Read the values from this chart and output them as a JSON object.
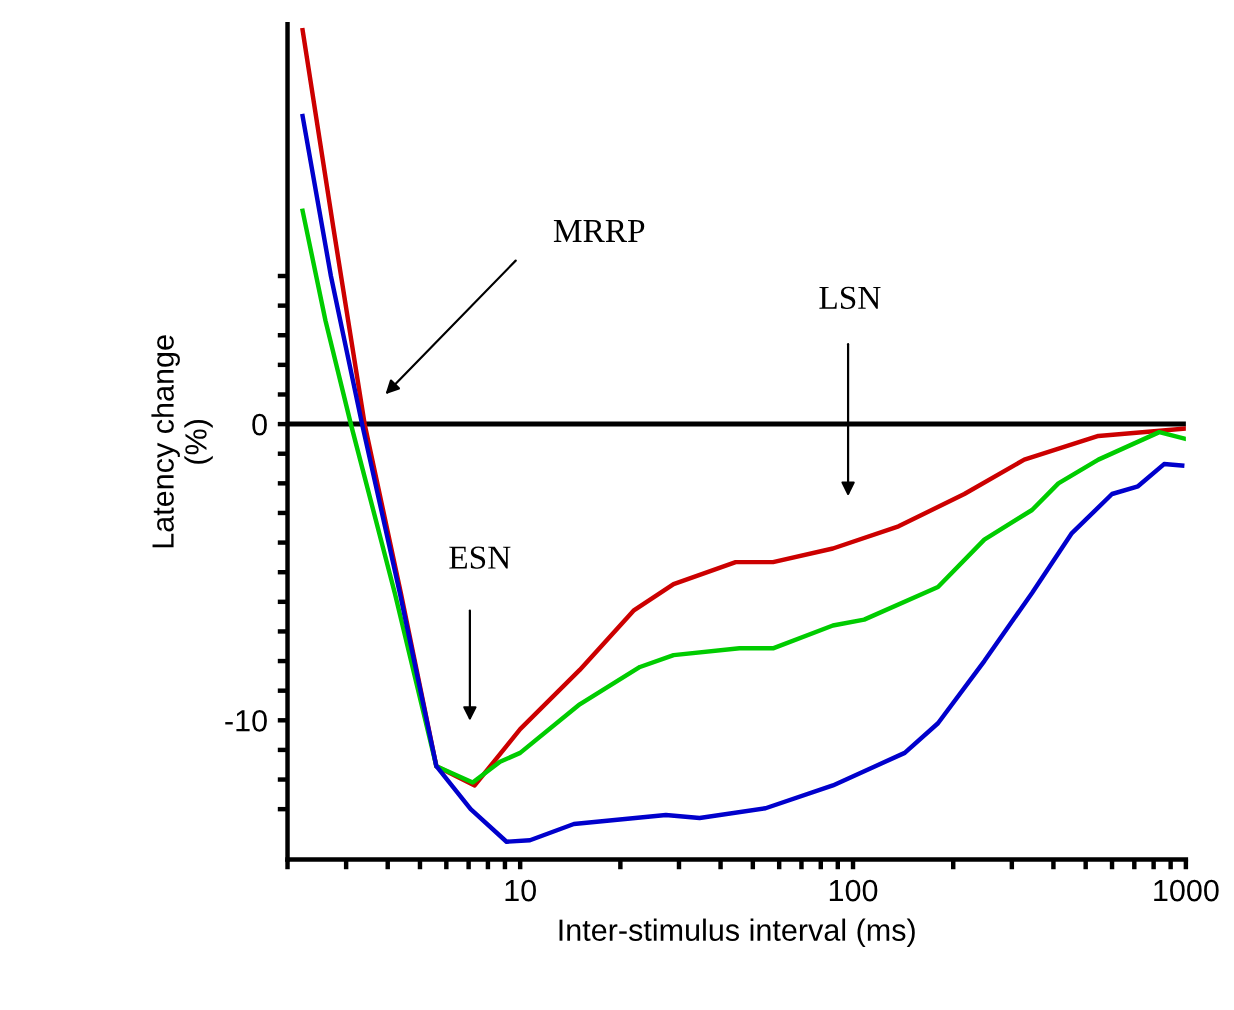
{
  "chart_data": {
    "type": "line",
    "xlabel": "Inter-stimulus interval (ms)",
    "ylabel": "Latency change\n(%)",
    "log": "x",
    "xlim": [
      2,
      1000
    ],
    "ylim": [
      -14.7,
      13.5
    ],
    "xticks": [
      {
        "value": 2,
        "label": null
      },
      {
        "value": 3,
        "label": null
      },
      {
        "value": 4,
        "label": null
      },
      {
        "value": 5,
        "label": null
      },
      {
        "value": 6,
        "label": null
      },
      {
        "value": 7,
        "label": null
      },
      {
        "value": 8,
        "label": null
      },
      {
        "value": 9,
        "label": null
      },
      10,
      {
        "value": 20,
        "label": null
      },
      {
        "value": 30,
        "label": null
      },
      {
        "value": 40,
        "label": null
      },
      {
        "value": 50,
        "label": null
      },
      {
        "value": 60,
        "label": null
      },
      {
        "value": 70,
        "label": null
      },
      {
        "value": 80,
        "label": null
      },
      {
        "value": 90,
        "label": null
      },
      100,
      {
        "value": 200,
        "label": null
      },
      {
        "value": 300,
        "label": null
      },
      {
        "value": 400,
        "label": null
      },
      {
        "value": 500,
        "label": null
      },
      {
        "value": 600,
        "label": null
      },
      {
        "value": 700,
        "label": null
      },
      {
        "value": 800,
        "label": null
      },
      {
        "value": 900,
        "label": null
      },
      1000
    ],
    "yticks": [
      {
        "value": -13,
        "label": null
      },
      {
        "value": -12,
        "label": null
      },
      {
        "value": -11,
        "label": null
      },
      -10,
      {
        "value": -9,
        "label": null
      },
      {
        "value": -8,
        "label": null
      },
      {
        "value": -7,
        "label": null
      },
      {
        "value": -6,
        "label": null
      },
      {
        "value": -5,
        "label": null
      },
      {
        "value": -4,
        "label": null
      },
      {
        "value": -3,
        "label": null
      },
      {
        "value": -2,
        "label": null
      },
      {
        "value": -1,
        "label": null
      },
      0,
      {
        "value": 1,
        "label": null
      },
      {
        "value": 2,
        "label": null
      },
      {
        "value": 3,
        "label": null
      },
      {
        "value": 4,
        "label": null
      },
      {
        "value": 5,
        "label": null
      }
    ],
    "grid": false,
    "legend": false,
    "marker": "none",
    "line_style": "solid",
    "ref_lines": [
      {
        "axis": "y",
        "value": 0,
        "color": "#000000"
      }
    ],
    "annotations": [
      "MRRP",
      "ESN",
      "LSN"
    ],
    "series": [
      {
        "color": "#cc0000",
        "x": [
          2.22,
          2.74,
          3.41,
          4.38,
          5.6,
          7.3,
          10,
          15.1,
          21.9,
          28.9,
          44.4,
          57.5,
          87,
          137,
          216,
          327,
          546,
          1000
        ],
        "values": [
          13.3,
          6.7,
          0,
          -5.7,
          -11.55,
          -12.2,
          -10.3,
          -8.3,
          -6.3,
          -5.4,
          -4.66,
          -4.66,
          -4.2,
          -3.45,
          -2.36,
          -1.2,
          -0.4,
          -0.15
        ]
      },
      {
        "color": "#00cc00",
        "x": [
          2.22,
          2.6,
          3.1,
          4.2,
          5.6,
          7.2,
          8.7,
          10,
          15.1,
          22.9,
          28.9,
          45.6,
          57.5,
          87,
          108,
          180,
          248,
          345,
          414,
          546,
          832,
          1000
        ],
        "values": [
          7.2,
          3.5,
          0,
          -5.7,
          -11.55,
          -12.1,
          -11.4,
          -11.1,
          -9.46,
          -8.2,
          -7.8,
          -7.57,
          -7.57,
          -6.8,
          -6.6,
          -5.5,
          -3.9,
          -2.9,
          -2.0,
          -1.2,
          -0.27,
          -0.5
        ]
      },
      {
        "color": "#0000cc",
        "x": [
          2.22,
          2.7,
          3.35,
          4.35,
          5.6,
          7.1,
          9.1,
          10.7,
          14.5,
          27.4,
          34.6,
          54.6,
          87,
          143,
          180,
          248,
          345,
          453,
          600,
          718,
          860,
          975
        ],
        "values": [
          10.4,
          5.0,
          0,
          -5.7,
          -11.55,
          -13.0,
          -14.1,
          -14.05,
          -13.5,
          -13.2,
          -13.3,
          -12.97,
          -12.2,
          -11.1,
          -10.1,
          -8.0,
          -5.7,
          -3.7,
          -2.36,
          -2.1,
          -1.35,
          -1.4
        ]
      }
    ]
  }
}
